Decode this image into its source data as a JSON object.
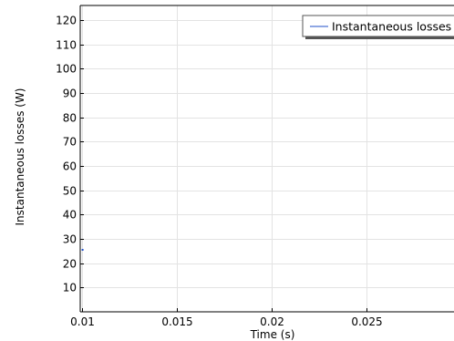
{
  "chart_data": {
    "type": "line",
    "title": "",
    "xlabel": "Time (s)",
    "ylabel": "Instantaneous losses (W)",
    "xlim": [
      0.0099,
      0.0296
    ],
    "ylim": [
      0,
      126
    ],
    "xticks": [
      0.01,
      0.015,
      0.02,
      0.025
    ],
    "xtick_labels": [
      "0.01",
      "0.015",
      "0.02",
      "0.025"
    ],
    "yticks": [
      10,
      20,
      30,
      40,
      50,
      60,
      70,
      80,
      90,
      100,
      110,
      120
    ],
    "ytick_labels": [
      "10",
      "20",
      "30",
      "40",
      "50",
      "60",
      "70",
      "80",
      "90",
      "100",
      "110",
      "120"
    ],
    "grid": true,
    "legend_position": "top-right",
    "series": [
      {
        "name": "Instantaneous losses",
        "color": "#1f4fc8",
        "x": [
          0.01
        ],
        "y": [
          25.5
        ]
      }
    ]
  }
}
